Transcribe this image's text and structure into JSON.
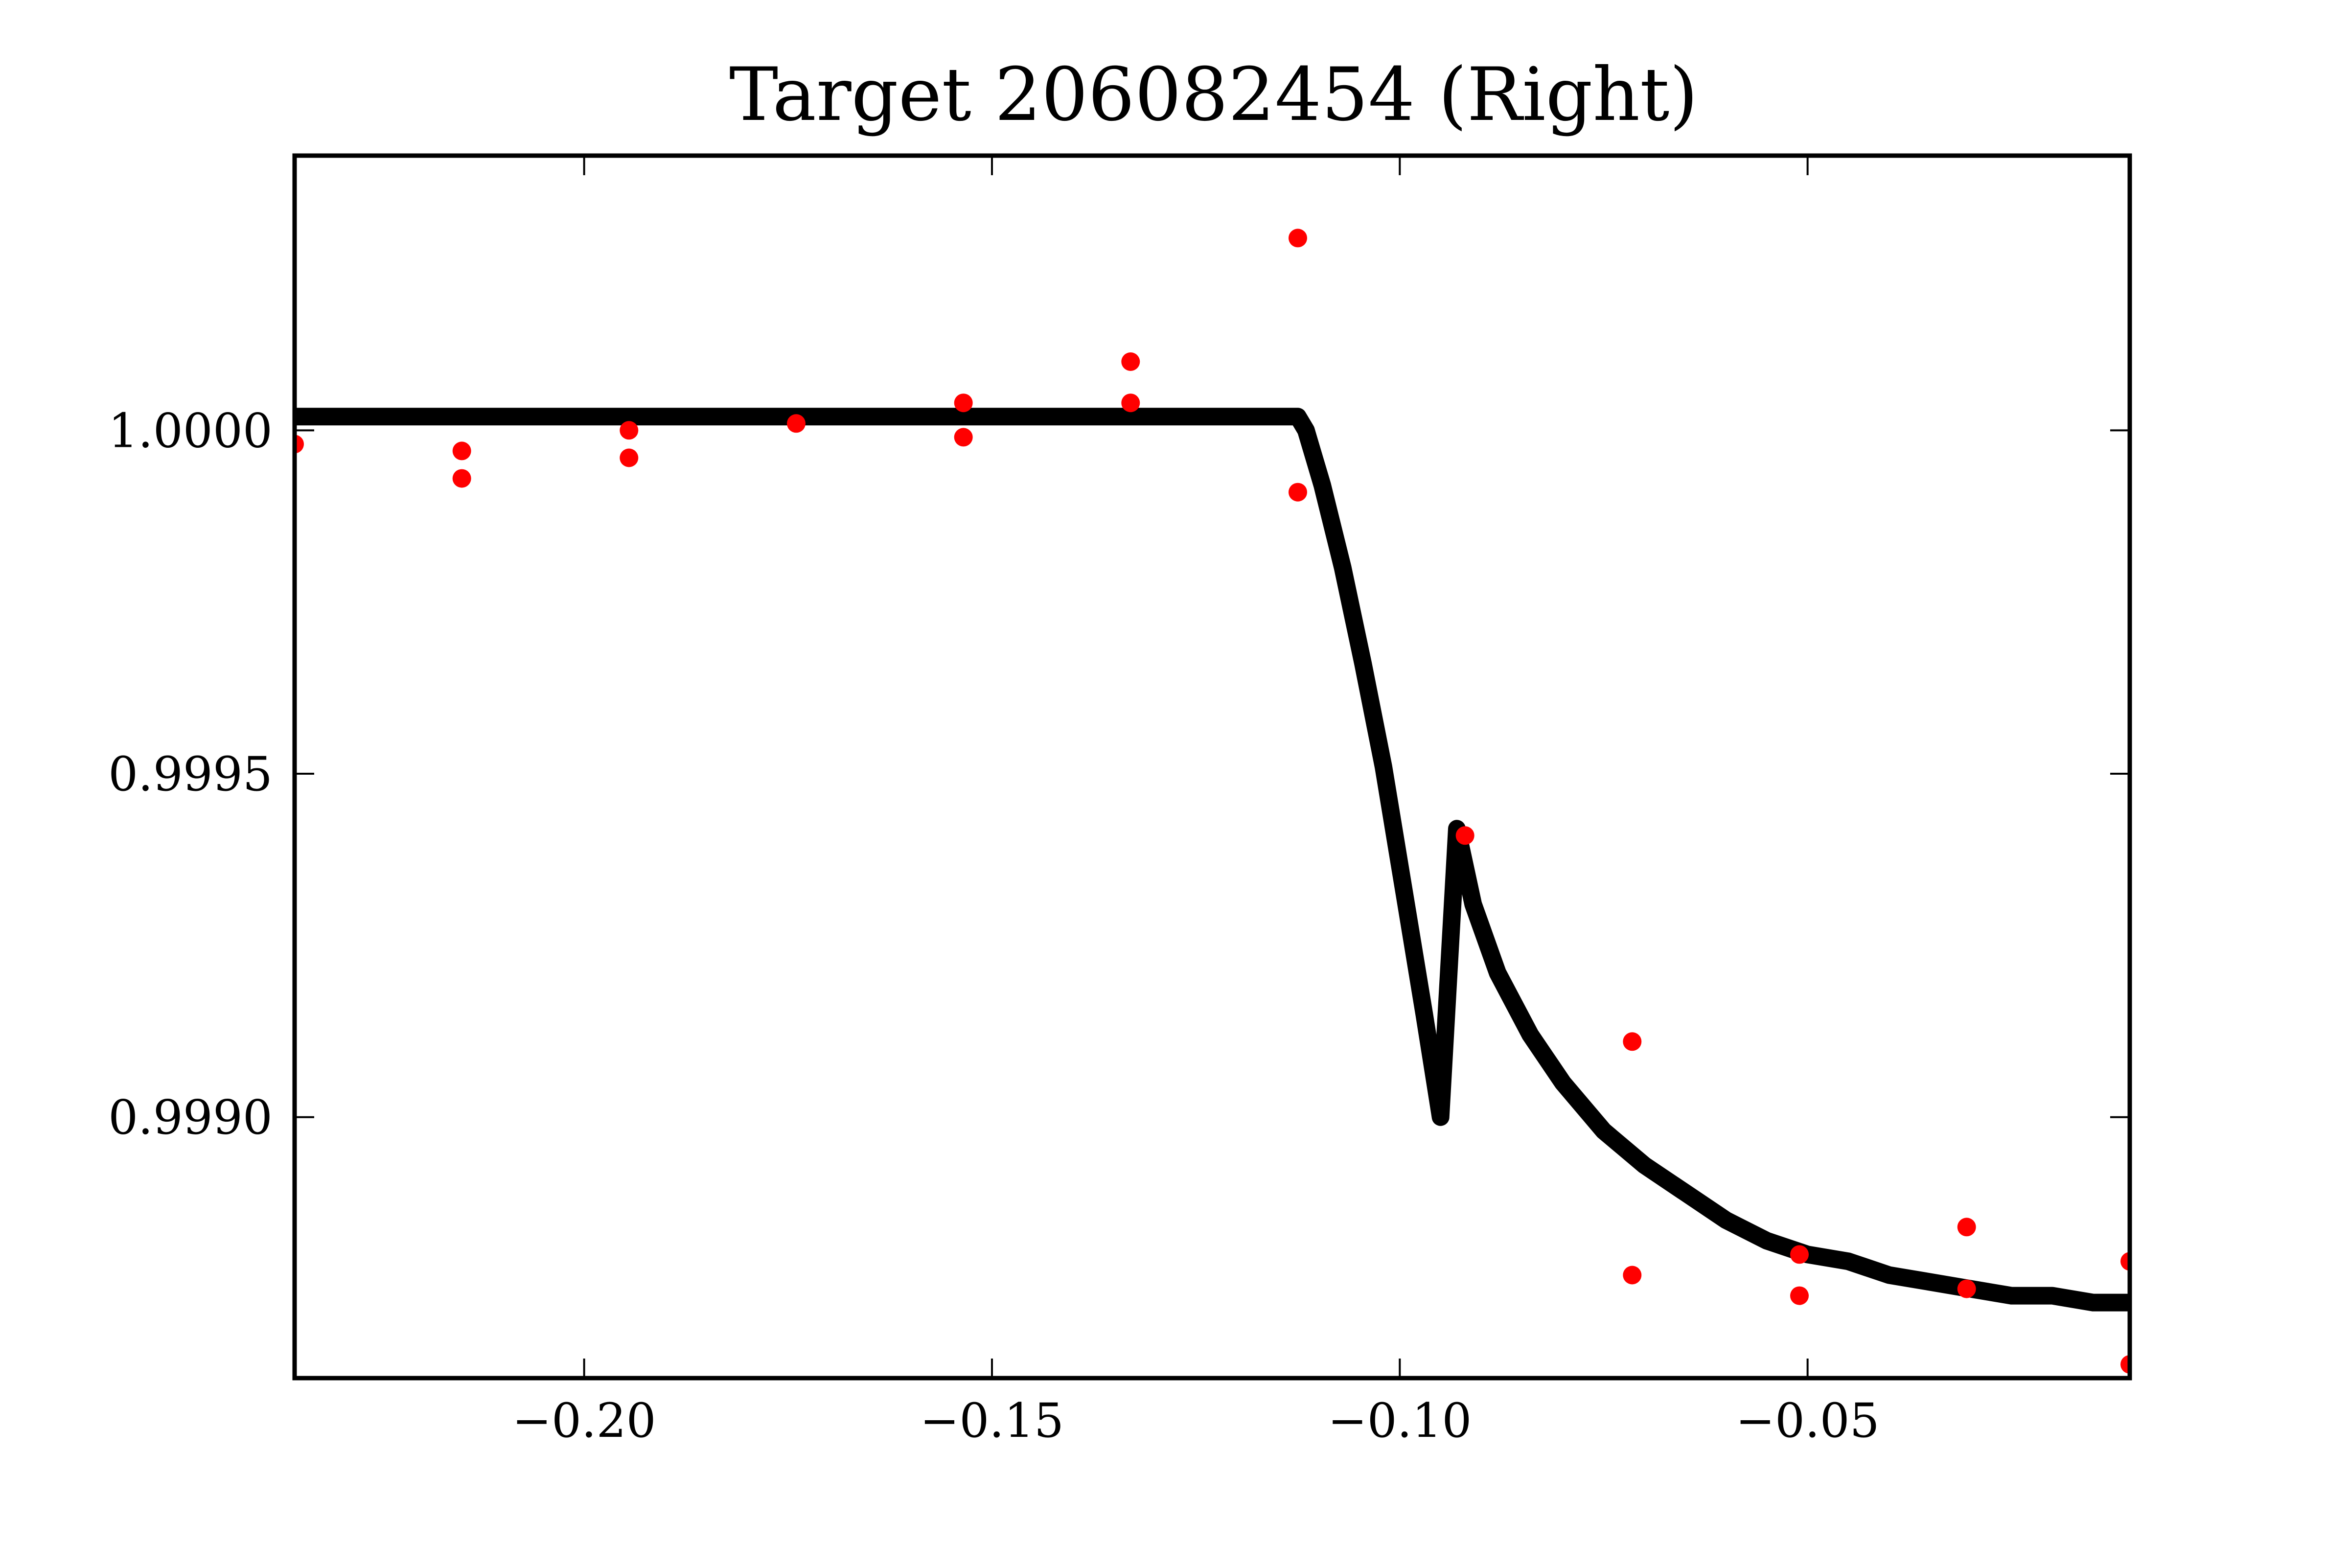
{
  "chart_data": {
    "type": "scatter",
    "title": "Target 206082454 (Right)",
    "xlabel": "",
    "ylabel": "",
    "xlim": [
      -0.2355,
      -0.0105
    ],
    "ylim": [
      0.99862,
      1.0004
    ],
    "x_ticks": [
      -0.2,
      -0.15,
      -0.1,
      -0.05
    ],
    "x_tick_labels": [
      "−0.20",
      "−0.15",
      "−0.10",
      "−0.05"
    ],
    "y_ticks": [
      0.999,
      0.9995,
      1.0
    ],
    "y_tick_labels": [
      "0.9990",
      "0.9995",
      "1.0000"
    ],
    "grid": false,
    "series": [
      {
        "kind": "scatter",
        "color": "#ff0000",
        "points": [
          {
            "x": -0.2355,
            "y": 0.99998
          },
          {
            "x": -0.215,
            "y": 0.99997
          },
          {
            "x": -0.215,
            "y": 0.99993
          },
          {
            "x": -0.1945,
            "y": 1.0
          },
          {
            "x": -0.1945,
            "y": 0.99996
          },
          {
            "x": -0.174,
            "y": 1.00001
          },
          {
            "x": -0.1535,
            "y": 1.00004
          },
          {
            "x": -0.1535,
            "y": 0.99999
          },
          {
            "x": -0.133,
            "y": 1.0001
          },
          {
            "x": -0.133,
            "y": 1.00004
          },
          {
            "x": -0.1125,
            "y": 1.00028
          },
          {
            "x": -0.1125,
            "y": 0.99991
          },
          {
            "x": -0.092,
            "y": 0.99941
          },
          {
            "x": -0.0715,
            "y": 0.99911
          },
          {
            "x": -0.0715,
            "y": 0.99877
          },
          {
            "x": -0.051,
            "y": 0.9988
          },
          {
            "x": -0.051,
            "y": 0.99874
          },
          {
            "x": -0.0305,
            "y": 0.99884
          },
          {
            "x": -0.0305,
            "y": 0.99875
          },
          {
            "x": -0.0105,
            "y": 0.99879
          },
          {
            "x": -0.0105,
            "y": 0.99864
          }
        ]
      },
      {
        "kind": "line",
        "color": "#000000",
        "points": [
          {
            "x": -0.2355,
            "y": 1.00002
          },
          {
            "x": -0.1125,
            "y": 1.00002
          },
          {
            "x": -0.1115,
            "y": 1.0
          },
          {
            "x": -0.1095,
            "y": 0.99992
          },
          {
            "x": -0.107,
            "y": 0.9998
          },
          {
            "x": -0.1045,
            "y": 0.99966
          },
          {
            "x": -0.102,
            "y": 0.99951
          },
          {
            "x": -0.0995,
            "y": 0.99933
          },
          {
            "x": -0.097,
            "y": 0.99915
          },
          {
            "x": -0.095,
            "y": 0.999
          },
          {
            "x": -0.093,
            "y": 0.99942
          },
          {
            "x": -0.091,
            "y": 0.99931
          },
          {
            "x": -0.088,
            "y": 0.99921
          },
          {
            "x": -0.084,
            "y": 0.99912
          },
          {
            "x": -0.08,
            "y": 0.99905
          },
          {
            "x": -0.075,
            "y": 0.99898
          },
          {
            "x": -0.07,
            "y": 0.99893
          },
          {
            "x": -0.065,
            "y": 0.99889
          },
          {
            "x": -0.06,
            "y": 0.99885
          },
          {
            "x": -0.055,
            "y": 0.99882
          },
          {
            "x": -0.05,
            "y": 0.9988
          },
          {
            "x": -0.045,
            "y": 0.99879
          },
          {
            "x": -0.04,
            "y": 0.99877
          },
          {
            "x": -0.035,
            "y": 0.99876
          },
          {
            "x": -0.03,
            "y": 0.99875
          },
          {
            "x": -0.025,
            "y": 0.99874
          },
          {
            "x": -0.02,
            "y": 0.99874
          },
          {
            "x": -0.015,
            "y": 0.99873
          },
          {
            "x": -0.0105,
            "y": 0.99873
          }
        ]
      }
    ]
  }
}
